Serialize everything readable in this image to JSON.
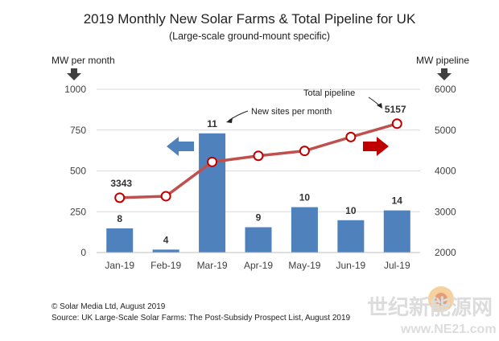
{
  "chart_data": {
    "type": "bar+line",
    "title": "2019 Monthly New Solar Farms & Total Pipeline for UK",
    "subtitle": "(Large-scale ground-mount specific)",
    "y_left_label": "MW per month",
    "y_right_label": "MW pipeline",
    "categories": [
      "Jan-19",
      "Feb-19",
      "Mar-19",
      "Apr-19",
      "May-19",
      "Jun-19",
      "Jul-19"
    ],
    "y_left_ticks": [
      "0",
      "250",
      "500",
      "750",
      "1000"
    ],
    "y_right_ticks": [
      "2000",
      "3000",
      "4000",
      "5000",
      "6000"
    ],
    "ylim_left": [
      0,
      1000
    ],
    "ylim_right": [
      2000,
      6000
    ],
    "series": [
      {
        "name": "New sites per month",
        "kind": "bar",
        "axis": "left",
        "values": [
          148,
          18,
          730,
          155,
          278,
          198,
          258
        ],
        "labels": [
          "8",
          "4",
          "11",
          "9",
          "10",
          "10",
          "14"
        ],
        "color": "#4f81bd"
      },
      {
        "name": "Total pipeline",
        "kind": "line",
        "axis": "right",
        "values": [
          3343,
          3380,
          4220,
          4370,
          4490,
          4830,
          5157
        ],
        "labels": [
          "3343",
          "",
          "",
          "",
          "",
          "",
          "5157"
        ],
        "color": "#c0504d"
      }
    ],
    "annotations": {
      "bars_note": "New sites per month",
      "line_note": "Total pipeline"
    },
    "arrow_colors": {
      "left": "#4f81bd",
      "right": "#c00000"
    }
  },
  "footer": {
    "copyright": "© Solar Media Ltd, August 2019",
    "source": "Source: UK Large-Scale Solar Farms: The Post-Subsidy Prospect List, August 2019"
  },
  "watermark": {
    "text": "世纪新能源网",
    "url": "www.NE21.com"
  }
}
